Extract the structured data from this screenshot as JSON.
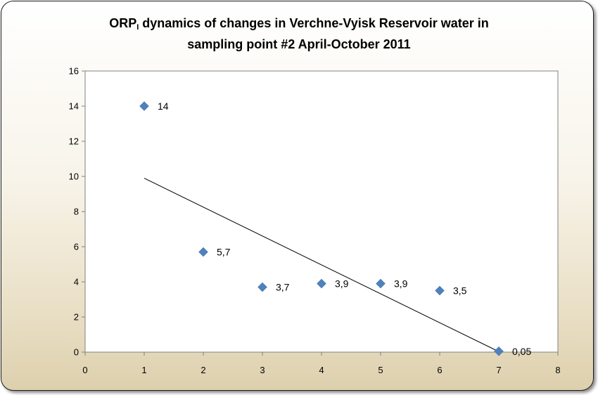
{
  "chart_data": {
    "type": "scatter",
    "title_main": "ORP",
    "title_sub": "I",
    "title_line1_rest": " dynamics  of changes  in Verchne-Vyisk  Reservoir water  in",
    "title_line2": "sampling  point #2 April-October  2011",
    "x": [
      1,
      2,
      3,
      4,
      5,
      6,
      7
    ],
    "y": [
      14,
      5.7,
      3.7,
      3.9,
      3.9,
      3.5,
      0.05
    ],
    "data_labels": [
      "14",
      "5,7",
      "3,7",
      "3,9",
      "3,9",
      "3,5",
      "0,05"
    ],
    "xlim": [
      0,
      8
    ],
    "ylim": [
      0,
      16
    ],
    "x_ticks": [
      "0",
      "1",
      "2",
      "3",
      "4",
      "5",
      "6",
      "7",
      "8"
    ],
    "y_ticks": [
      "0",
      "2",
      "4",
      "6",
      "8",
      "10",
      "12",
      "14",
      "16"
    ],
    "trendline": {
      "type": "linear",
      "x_range": [
        1,
        7
      ]
    },
    "grid": false,
    "legend": "none",
    "marker": "diamond",
    "marker_color": "#4F81BD",
    "trendline_color": "#000000",
    "background_gradient": [
      "#ffffff",
      "#ddd0ae"
    ]
  }
}
